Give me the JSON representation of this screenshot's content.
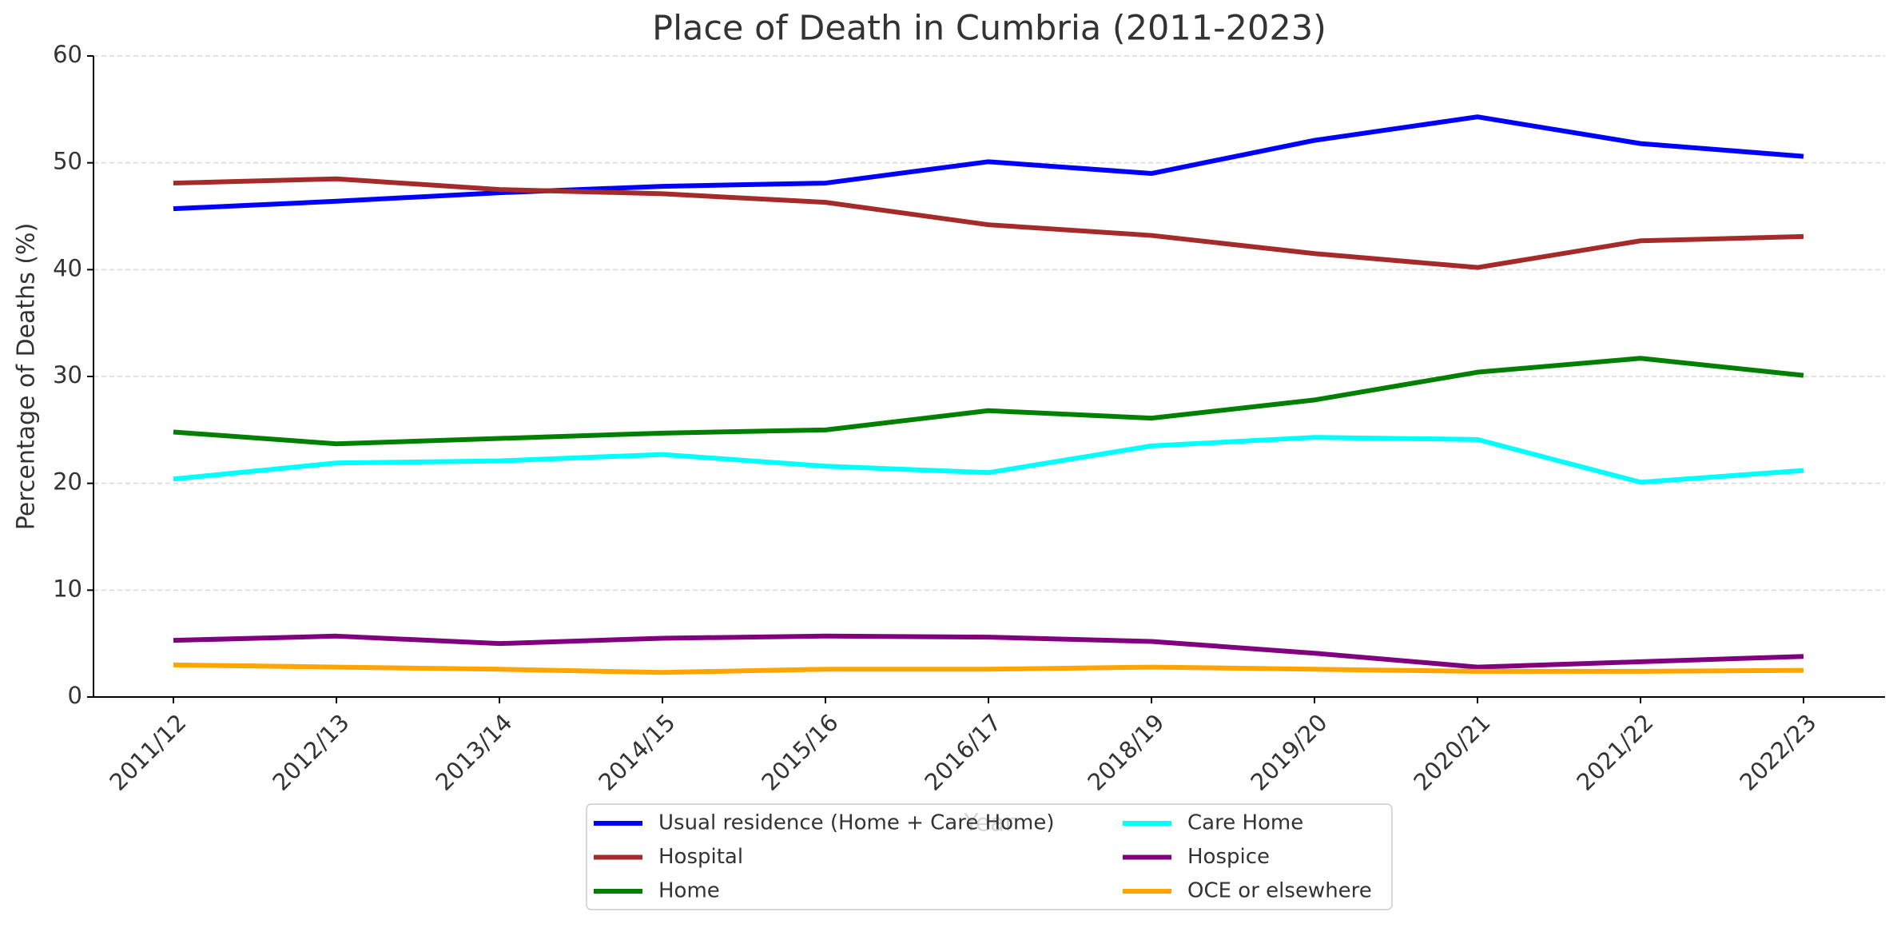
{
  "chart_data": {
    "type": "line",
    "title": "Place of Death in Cumbria (2011-2023)",
    "xlabel": "Year",
    "ylabel": "Percentage of Deaths (%)",
    "categories": [
      "2011/12",
      "2012/13",
      "2013/14",
      "2014/15",
      "2015/16",
      "2016/17",
      "2018/19",
      "2019/20",
      "2020/21",
      "2021/22",
      "2022/23"
    ],
    "series": [
      {
        "name": "Usual residence (Home + Care Home)",
        "color": "#0000ff",
        "values": [
          45.7,
          46.4,
          47.2,
          47.8,
          48.1,
          50.1,
          49.0,
          52.1,
          54.3,
          51.8,
          50.6
        ]
      },
      {
        "name": "Hospital",
        "color": "#a52a2a",
        "values": [
          48.1,
          48.5,
          47.5,
          47.1,
          46.3,
          44.2,
          43.2,
          41.5,
          40.2,
          42.7,
          43.1
        ]
      },
      {
        "name": "Home",
        "color": "#008000",
        "values": [
          24.8,
          23.7,
          24.2,
          24.7,
          25.0,
          26.8,
          26.1,
          27.8,
          30.4,
          31.7,
          30.1
        ]
      },
      {
        "name": "Care Home",
        "color": "#00ffff",
        "values": [
          20.4,
          21.9,
          22.1,
          22.7,
          21.6,
          21.0,
          23.5,
          24.3,
          24.1,
          20.1,
          21.2
        ]
      },
      {
        "name": "Hospice",
        "color": "#800080",
        "values": [
          5.3,
          5.7,
          5.0,
          5.5,
          5.7,
          5.6,
          5.2,
          4.1,
          2.8,
          3.3,
          3.8
        ]
      },
      {
        "name": "OCE or elsewhere",
        "color": "#ffa500",
        "values": [
          3.0,
          2.8,
          2.6,
          2.3,
          2.6,
          2.6,
          2.8,
          2.6,
          2.4,
          2.4,
          2.5
        ]
      }
    ],
    "ylim": [
      0,
      60
    ],
    "yticks": [
      0,
      10,
      20,
      30,
      40,
      50,
      60
    ],
    "grid": true,
    "legend": "lower center"
  }
}
